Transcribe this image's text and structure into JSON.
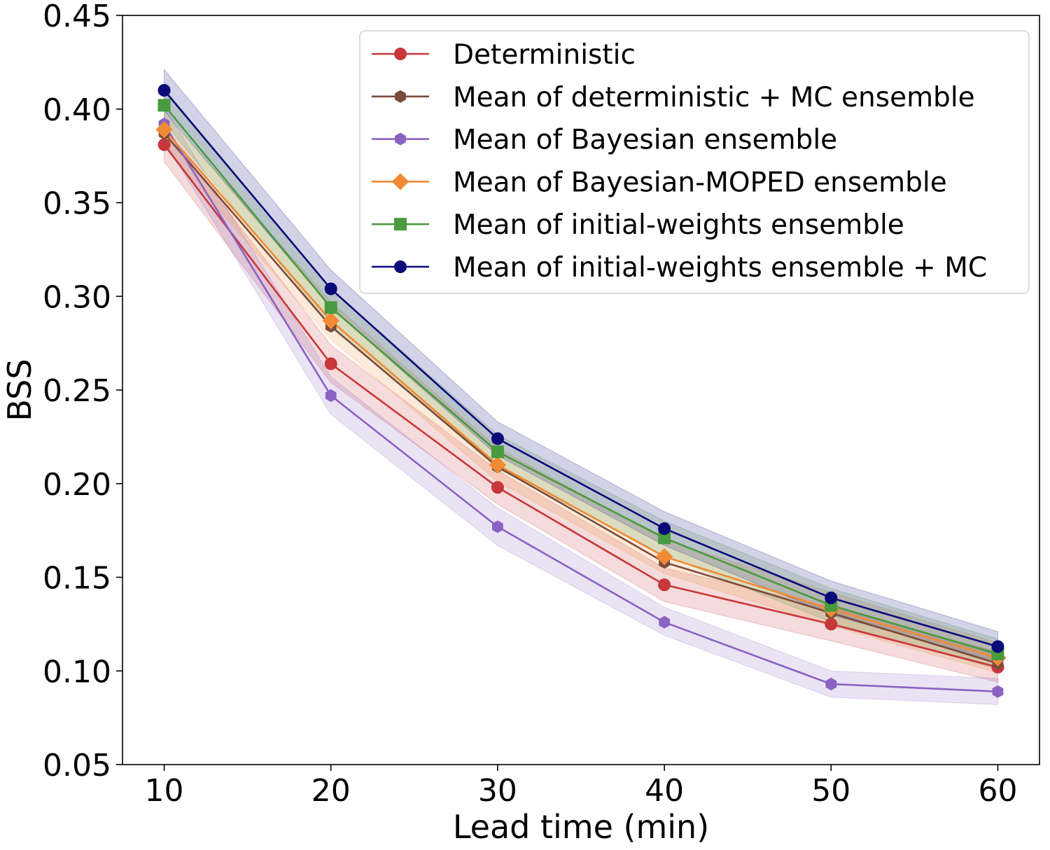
{
  "chart_data": {
    "type": "line",
    "title": "",
    "xlabel": "Lead time (min)",
    "ylabel": "BSS",
    "x": [
      10,
      20,
      30,
      40,
      50,
      60
    ],
    "xticks": [
      "10",
      "20",
      "30",
      "40",
      "50",
      "60"
    ],
    "yticks": [
      "0.05",
      "0.10",
      "0.15",
      "0.20",
      "0.25",
      "0.30",
      "0.35",
      "0.40",
      "0.45"
    ],
    "xlim": [
      7.5,
      62.5
    ],
    "ylim": [
      0.05,
      0.45
    ],
    "grid": false,
    "legend_position": "top-right",
    "series": [
      {
        "name": "Deterministic",
        "color": "#c8373a",
        "marker": "circle",
        "band": true,
        "values": [
          0.381,
          0.264,
          0.198,
          0.146,
          0.125,
          0.102
        ],
        "lower": [
          0.372,
          0.254,
          0.189,
          0.137,
          0.116,
          0.094
        ],
        "upper": [
          0.39,
          0.274,
          0.207,
          0.155,
          0.134,
          0.11
        ]
      },
      {
        "name": "Mean of deterministic + MC ensemble",
        "color": "#7b4b3a",
        "marker": "hexagon",
        "band": false,
        "values": [
          0.387,
          0.284,
          0.209,
          0.158,
          0.131,
          0.104
        ]
      },
      {
        "name": "Mean of Bayesian ensemble",
        "color": "#8a63c2",
        "marker": "hexagon",
        "band": true,
        "values": [
          0.392,
          0.247,
          0.177,
          0.126,
          0.093,
          0.089
        ],
        "lower": [
          0.383,
          0.237,
          0.167,
          0.119,
          0.086,
          0.082
        ],
        "upper": [
          0.401,
          0.257,
          0.187,
          0.134,
          0.1,
          0.096
        ]
      },
      {
        "name": "Mean of Bayesian-MOPED ensemble",
        "color": "#f08a34",
        "marker": "diamond",
        "band": true,
        "values": [
          0.389,
          0.287,
          0.21,
          0.161,
          0.133,
          0.107
        ],
        "lower": [
          0.38,
          0.277,
          0.201,
          0.152,
          0.124,
          0.099
        ],
        "upper": [
          0.398,
          0.297,
          0.219,
          0.17,
          0.142,
          0.115
        ]
      },
      {
        "name": "Mean of initial-weights ensemble",
        "color": "#4a9a3f",
        "marker": "square",
        "band": true,
        "values": [
          0.402,
          0.294,
          0.217,
          0.171,
          0.135,
          0.109
        ],
        "lower": [
          0.393,
          0.284,
          0.208,
          0.162,
          0.126,
          0.101
        ],
        "upper": [
          0.411,
          0.304,
          0.226,
          0.18,
          0.144,
          0.117
        ]
      },
      {
        "name": "Mean of initial-weights ensemble + MC",
        "color": "#0a0a7a",
        "marker": "circle",
        "band": true,
        "values": [
          0.41,
          0.304,
          0.224,
          0.176,
          0.139,
          0.113
        ],
        "lower": [
          0.399,
          0.294,
          0.215,
          0.167,
          0.13,
          0.105
        ],
        "upper": [
          0.421,
          0.314,
          0.233,
          0.185,
          0.148,
          0.121
        ]
      }
    ]
  }
}
